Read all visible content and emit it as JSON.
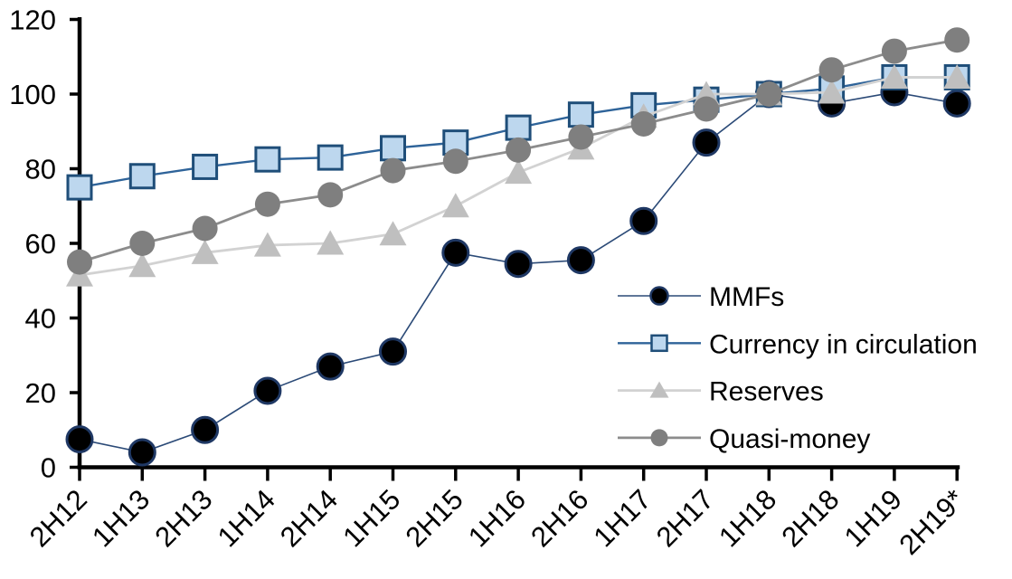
{
  "chart_data": {
    "type": "line",
    "title": "",
    "categories": [
      "2H12",
      "1H13",
      "2H13",
      "1H14",
      "2H14",
      "1H15",
      "2H15",
      "1H16",
      "2H16",
      "1H17",
      "2H17",
      "1H18",
      "2H18",
      "1H19",
      "2H19*"
    ],
    "series": [
      {
        "name": "MMFs",
        "marker": "circle",
        "marker_fill": "#000000",
        "marker_stroke": "#1F3864",
        "line_color": "#2B4A77",
        "line_width": 1.6,
        "values": [
          7.5,
          4,
          10,
          20.5,
          27,
          31,
          57.5,
          54.5,
          55.5,
          66,
          87,
          100,
          97.5,
          100.5,
          97.5
        ]
      },
      {
        "name": "Currency in circulation",
        "marker": "square",
        "marker_fill": "#BDD7EE",
        "marker_stroke": "#1F4E79",
        "line_color": "#2E6399",
        "line_width": 2.4,
        "values": [
          75,
          78,
          80.5,
          82.5,
          83,
          85.5,
          87,
          91,
          94.5,
          97,
          98.5,
          100,
          101.5,
          104.5,
          104.5
        ]
      },
      {
        "name": "Reserves",
        "marker": "triangle",
        "marker_fill": "#BFBFBF",
        "marker_stroke": "none",
        "line_color": "#D2D2D2",
        "line_width": 2.8,
        "values": [
          51.5,
          54,
          57.5,
          59.5,
          60,
          62.5,
          70,
          79,
          85.5,
          94,
          100,
          100,
          100.5,
          104.5,
          104.5
        ]
      },
      {
        "name": "Quasi-money",
        "marker": "circle",
        "marker_fill": "#7F7F7F",
        "marker_stroke": "none",
        "line_color": "#8C8C8C",
        "line_width": 2.8,
        "values": [
          55,
          60,
          64,
          70.5,
          73,
          79.5,
          82,
          85,
          88.5,
          92,
          96,
          100,
          106.5,
          111.5,
          114.5
        ]
      }
    ],
    "x_axis": {
      "tick_labels": [
        "2H12",
        "1H13",
        "2H13",
        "1H14",
        "2H14",
        "1H15",
        "2H15",
        "1H16",
        "2H16",
        "1H17",
        "2H17",
        "1H18",
        "2H18",
        "1H19",
        "2H19*"
      ],
      "label_rotation_deg": 45
    },
    "y_axis": {
      "min": 0,
      "max": 120,
      "step": 20,
      "tick_labels": [
        "0",
        "20",
        "40",
        "60",
        "80",
        "100",
        "120"
      ]
    },
    "legend": {
      "position": "inside-right",
      "entries": [
        "MMFs",
        "Currency in circulation",
        "Reserves",
        "Quasi-money"
      ]
    },
    "colors": {
      "axis": "#000000",
      "text": "#000000",
      "background": "#FFFFFF"
    }
  }
}
